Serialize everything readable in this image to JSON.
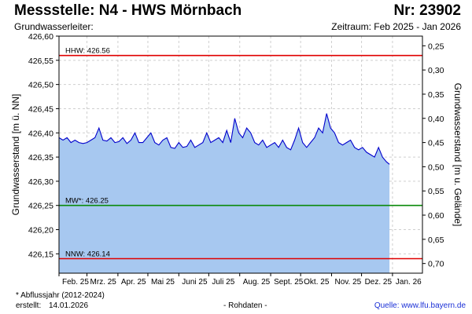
{
  "header": {
    "title": "Messstelle: N4 - HWS Mörnbach",
    "number": "Nr: 23902",
    "aquifer": "Grundwasserleiter:",
    "period": "Zeitraum: Feb 2025 - Jan 2026"
  },
  "footer": {
    "footnote": "* Abflussjahr (2012-2024)",
    "created_label": "erstellt:",
    "created_value": "14.01.2026",
    "note": "- Rohdaten -",
    "source": "Quelle: www.lfu.bayern.de"
  },
  "chart_data": {
    "type": "area",
    "ylabel": "Grundwasserstand [m ü. NN]",
    "y2label": "Grundwasserstand [m u. Gelände]",
    "ylim": [
      426.11,
      426.6
    ],
    "y_ticks": [
      "426,60",
      "426,55",
      "426,50",
      "426,45",
      "426,40",
      "426,35",
      "426,30",
      "426,25",
      "426,20",
      "426,15"
    ],
    "y_tick_values": [
      426.6,
      426.55,
      426.5,
      426.45,
      426.4,
      426.35,
      426.3,
      426.25,
      426.2,
      426.15
    ],
    "y2_ticks": [
      "0,25",
      "0,30",
      "0,35",
      "0,40",
      "0,45",
      "0,50",
      "0,55",
      "0,60",
      "0,65",
      "0,70"
    ],
    "y2_tick_values": [
      0.25,
      0.3,
      0.35,
      0.4,
      0.45,
      0.5,
      0.55,
      0.6,
      0.65,
      0.7
    ],
    "x_ticks": [
      "Feb. 25",
      "Mrz. 25",
      "Apr. 25",
      "Mai 25",
      "Juni 25",
      "Juli 25",
      "Aug. 25",
      "Sept. 25",
      "Okt. 25",
      "Nov. 25",
      "Dez. 25",
      "Jan. 26"
    ],
    "x_tick_dates": [
      "2025-02-01",
      "2025-03-01",
      "2025-04-01",
      "2025-05-01",
      "2025-06-01",
      "2025-07-01",
      "2025-08-01",
      "2025-09-01",
      "2025-10-01",
      "2025-11-01",
      "2025-12-01",
      "2026-01-01"
    ],
    "xlim": [
      "2025-02-01",
      "2026-01-31"
    ],
    "grid": true,
    "reference_lines": [
      {
        "label": "HHW: 426.56",
        "value": 426.56,
        "color": "#e00000"
      },
      {
        "label": "MW*: 426.25",
        "value": 426.25,
        "color": "#0a8a0a"
      },
      {
        "label": "NNW: 426.14",
        "value": 426.14,
        "color": "#e00000"
      }
    ],
    "series": [
      {
        "color": "#0000cc",
        "fill": "#a7c8f0",
        "x": [
          "2025-02-01",
          "2025-02-05",
          "2025-02-09",
          "2025-02-13",
          "2025-02-17",
          "2025-02-21",
          "2025-02-25",
          "2025-03-01",
          "2025-03-05",
          "2025-03-09",
          "2025-03-13",
          "2025-03-17",
          "2025-03-21",
          "2025-03-25",
          "2025-03-29",
          "2025-04-02",
          "2025-04-06",
          "2025-04-10",
          "2025-04-14",
          "2025-04-18",
          "2025-04-22",
          "2025-04-26",
          "2025-04-30",
          "2025-05-04",
          "2025-05-08",
          "2025-05-12",
          "2025-05-16",
          "2025-05-20",
          "2025-05-24",
          "2025-05-28",
          "2025-06-01",
          "2025-06-05",
          "2025-06-09",
          "2025-06-13",
          "2025-06-17",
          "2025-06-21",
          "2025-06-25",
          "2025-06-29",
          "2025-07-03",
          "2025-07-07",
          "2025-07-11",
          "2025-07-15",
          "2025-07-19",
          "2025-07-23",
          "2025-07-27",
          "2025-07-31",
          "2025-08-04",
          "2025-08-08",
          "2025-08-12",
          "2025-08-16",
          "2025-08-20",
          "2025-08-24",
          "2025-08-28",
          "2025-09-01",
          "2025-09-05",
          "2025-09-09",
          "2025-09-13",
          "2025-09-17",
          "2025-09-21",
          "2025-09-25",
          "2025-09-29",
          "2025-10-03",
          "2025-10-07",
          "2025-10-11",
          "2025-10-15",
          "2025-10-19",
          "2025-10-23",
          "2025-10-27",
          "2025-10-31",
          "2025-11-04",
          "2025-11-08",
          "2025-11-12",
          "2025-11-16",
          "2025-11-20",
          "2025-11-24",
          "2025-11-28",
          "2025-12-02",
          "2025-12-06",
          "2025-12-10",
          "2025-12-14",
          "2025-12-18",
          "2025-12-22",
          "2025-12-26",
          "2025-12-29"
        ],
        "y": [
          426.39,
          426.385,
          426.39,
          426.38,
          426.385,
          426.38,
          426.378,
          426.38,
          426.385,
          426.39,
          426.41,
          426.385,
          426.383,
          426.39,
          426.38,
          426.382,
          426.39,
          426.378,
          426.385,
          426.4,
          426.38,
          426.38,
          426.39,
          426.4,
          426.38,
          426.375,
          426.385,
          426.39,
          426.37,
          426.368,
          426.38,
          426.37,
          426.372,
          426.385,
          426.37,
          426.375,
          426.38,
          426.4,
          426.38,
          426.385,
          426.39,
          426.38,
          426.405,
          426.38,
          426.43,
          426.4,
          426.39,
          426.41,
          426.4,
          426.38,
          426.375,
          426.385,
          426.37,
          426.375,
          426.38,
          426.37,
          426.385,
          426.37,
          426.365,
          426.385,
          426.41,
          426.38,
          426.37,
          426.38,
          426.39,
          426.41,
          426.4,
          426.44,
          426.41,
          426.4,
          426.38,
          426.375,
          426.38,
          426.385,
          426.37,
          426.365,
          426.37,
          426.36,
          426.355,
          426.35,
          426.37,
          426.35,
          426.34,
          426.335
        ]
      }
    ]
  }
}
